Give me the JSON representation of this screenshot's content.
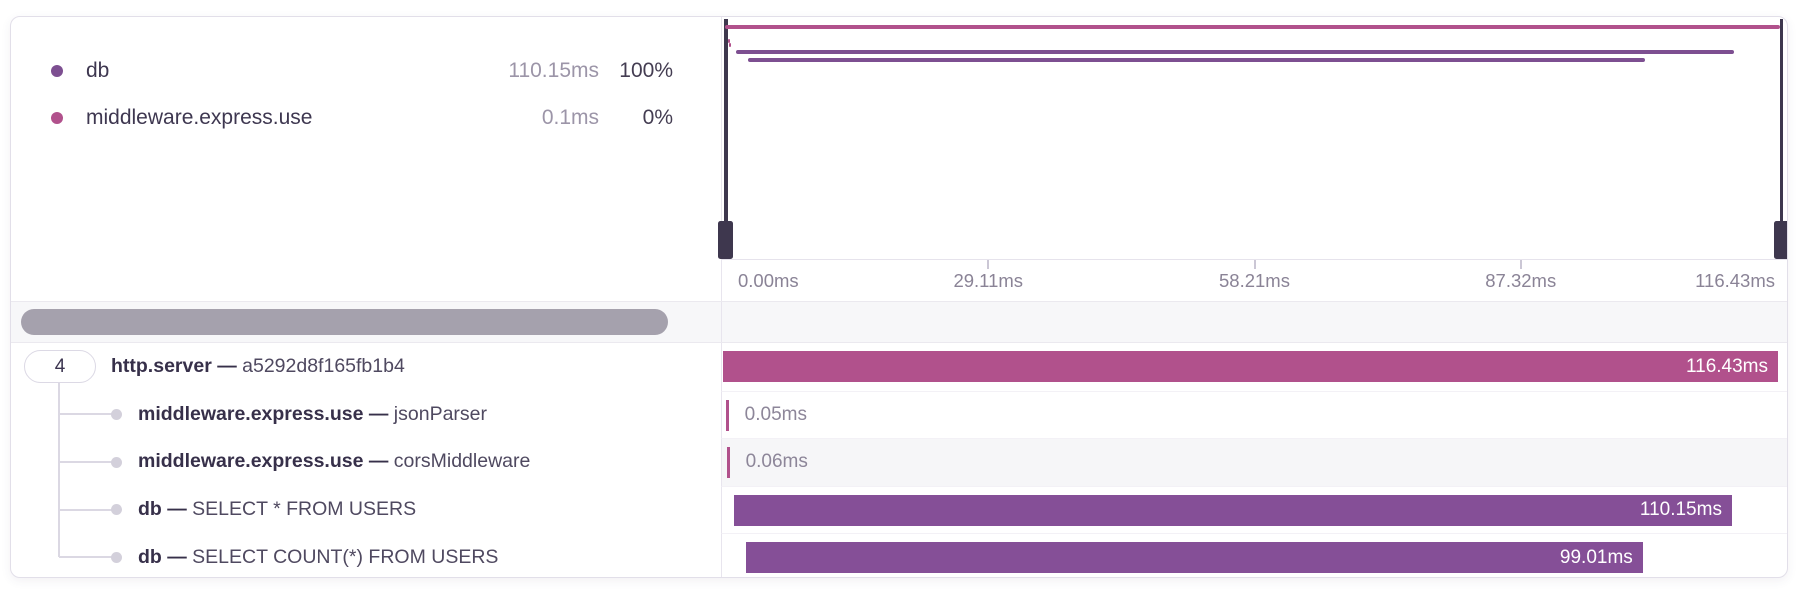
{
  "colors": {
    "pink": "#b1518c",
    "purple": "#854f97",
    "minimap_purple": "#7d4f91",
    "handle": "#3e374e",
    "scroll_thumb": "#a5a1ad"
  },
  "legend": {
    "items": [
      {
        "name": "db",
        "duration": "110.15ms",
        "percent": "100%",
        "color": "#7d4f91"
      },
      {
        "name": "middleware.express.use",
        "duration": "0.1ms",
        "percent": "0%",
        "color": "#b1518c"
      }
    ]
  },
  "timeline": {
    "total_ms": 116.43,
    "axis_ticks": [
      "0.00ms",
      "29.11ms",
      "58.21ms",
      "87.32ms",
      "116.43ms"
    ]
  },
  "spans": [
    {
      "badge": "4",
      "name": "http.server",
      "separator": "—",
      "detail": "a5292d8f165fb1b4",
      "start_ms": 0,
      "duration_ms": 116.43,
      "duration_label": "116.43ms",
      "color_key": "pink",
      "label_position": "inside",
      "shaded": false
    },
    {
      "name": "middleware.express.use",
      "separator": "—",
      "detail": "jsonParser",
      "start_ms": 0.35,
      "duration_ms": 0.05,
      "duration_label": "0.05ms",
      "color_key": "pink",
      "label_position": "outside",
      "shaded": false
    },
    {
      "name": "middleware.express.use",
      "separator": "—",
      "detail": "corsMiddleware",
      "start_ms": 0.45,
      "duration_ms": 0.06,
      "duration_label": "0.06ms",
      "color_key": "pink",
      "label_position": "outside",
      "shaded": true
    },
    {
      "name": "db",
      "separator": "—",
      "detail": "SELECT * FROM USERS",
      "start_ms": 1.2,
      "duration_ms": 110.15,
      "duration_label": "110.15ms",
      "color_key": "purple",
      "label_position": "inside",
      "shaded": false
    },
    {
      "name": "db",
      "separator": "—",
      "detail": "SELECT COUNT(*) FROM USERS",
      "start_ms": 2.5,
      "duration_ms": 99.01,
      "duration_label": "99.01ms",
      "color_key": "purple",
      "label_position": "inside",
      "shaded": false
    }
  ]
}
